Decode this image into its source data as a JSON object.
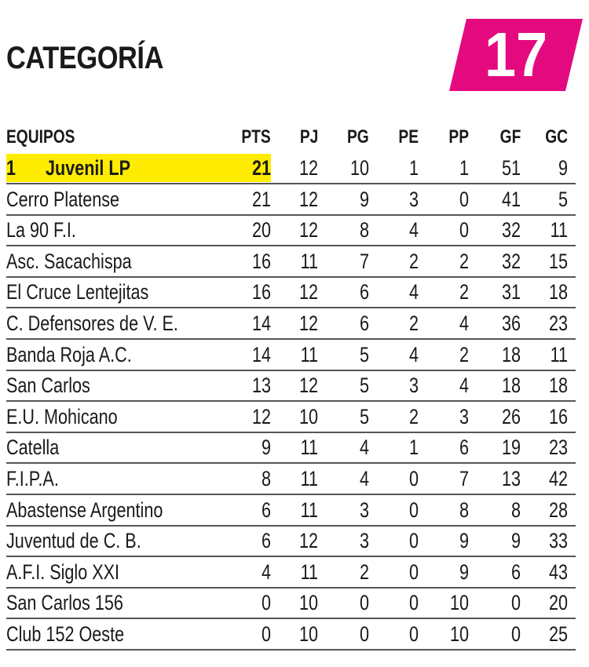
{
  "header": {
    "title": "CATEGORÍA",
    "badge": "17",
    "badge_color": "#e5097f",
    "highlight_color": "#ffec00"
  },
  "table": {
    "columns": [
      "EQUIPOS",
      "PTS",
      "PJ",
      "PG",
      "PE",
      "PP",
      "GF",
      "GC"
    ],
    "leader_position": "1",
    "rows": [
      {
        "team": "Juvenil LP",
        "pts": "21",
        "pj": "12",
        "pg": "10",
        "pe": "1",
        "pp": "1",
        "gf": "51",
        "gc": "9"
      },
      {
        "team": "Cerro Platense",
        "pts": "21",
        "pj": "12",
        "pg": "9",
        "pe": "3",
        "pp": "0",
        "gf": "41",
        "gc": "5"
      },
      {
        "team": "La 90 F.I.",
        "pts": "20",
        "pj": "12",
        "pg": "8",
        "pe": "4",
        "pp": "0",
        "gf": "32",
        "gc": "11"
      },
      {
        "team": "Asc. Sacachispa",
        "pts": "16",
        "pj": "11",
        "pg": "7",
        "pe": "2",
        "pp": "2",
        "gf": "32",
        "gc": "15"
      },
      {
        "team": "El Cruce Lentejitas",
        "pts": "16",
        "pj": "12",
        "pg": "6",
        "pe": "4",
        "pp": "2",
        "gf": "31",
        "gc": "18"
      },
      {
        "team": "C. Defensores de V. E.",
        "pts": "14",
        "pj": "12",
        "pg": "6",
        "pe": "2",
        "pp": "4",
        "gf": "36",
        "gc": "23"
      },
      {
        "team": "Banda Roja A.C.",
        "pts": "14",
        "pj": "11",
        "pg": "5",
        "pe": "4",
        "pp": "2",
        "gf": "18",
        "gc": "11"
      },
      {
        "team": "San Carlos",
        "pts": "13",
        "pj": "12",
        "pg": "5",
        "pe": "3",
        "pp": "4",
        "gf": "18",
        "gc": "18"
      },
      {
        "team": "E.U. Mohicano",
        "pts": "12",
        "pj": "10",
        "pg": "5",
        "pe": "2",
        "pp": "3",
        "gf": "26",
        "gc": "16"
      },
      {
        "team": "Catella",
        "pts": "9",
        "pj": "11",
        "pg": "4",
        "pe": "1",
        "pp": "6",
        "gf": "19",
        "gc": "23"
      },
      {
        "team": "F.I.P.A.",
        "pts": "8",
        "pj": "11",
        "pg": "4",
        "pe": "0",
        "pp": "7",
        "gf": "13",
        "gc": "42"
      },
      {
        "team": "Abastense Argentino",
        "pts": "6",
        "pj": "11",
        "pg": "3",
        "pe": "0",
        "pp": "8",
        "gf": "8",
        "gc": "28"
      },
      {
        "team": "Juventud de C. B.",
        "pts": "6",
        "pj": "12",
        "pg": "3",
        "pe": "0",
        "pp": "9",
        "gf": "9",
        "gc": "33"
      },
      {
        "team": "A.F.I. Siglo XXI",
        "pts": "4",
        "pj": "11",
        "pg": "2",
        "pe": "0",
        "pp": "9",
        "gf": "6",
        "gc": "43"
      },
      {
        "team": "San Carlos 156",
        "pts": "0",
        "pj": "10",
        "pg": "0",
        "pe": "0",
        "pp": "10",
        "gf": "0",
        "gc": "20"
      },
      {
        "team": "Club 152 Oeste",
        "pts": "0",
        "pj": "10",
        "pg": "0",
        "pe": "0",
        "pp": "10",
        "gf": "0",
        "gc": "25"
      }
    ]
  }
}
